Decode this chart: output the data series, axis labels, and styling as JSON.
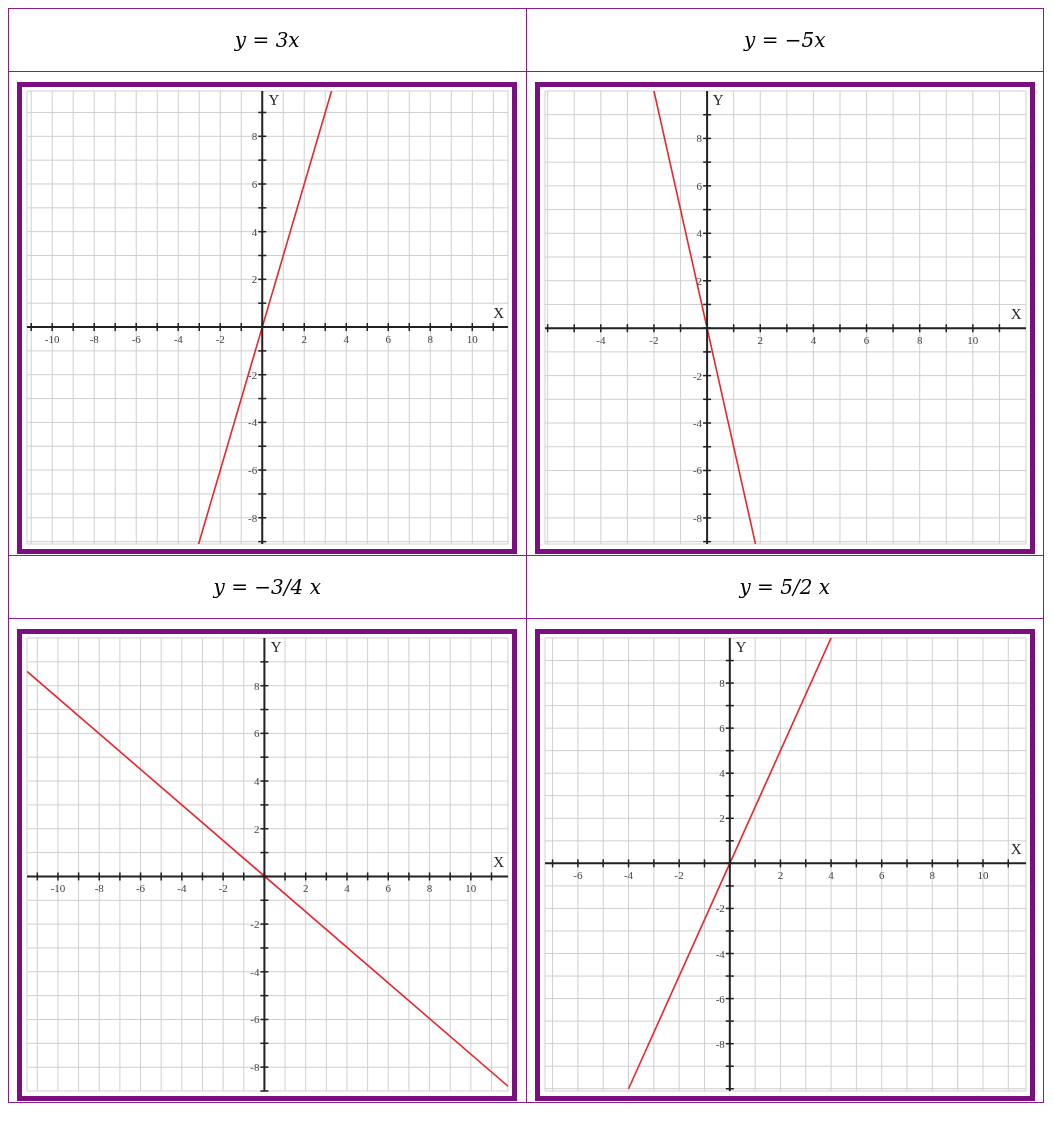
{
  "chart_data": [
    {
      "type": "line",
      "title": "y = 3x",
      "xlabel": "X",
      "ylabel": "Y",
      "xlim": [
        -11.2,
        11.7
      ],
      "ylim": [
        -9.1,
        9.9
      ],
      "xticks": [
        {
          "value": -11,
          "label": null
        },
        -10,
        {
          "value": -9,
          "label": null
        },
        -8,
        {
          "value": -7,
          "label": null
        },
        -6,
        {
          "value": -5,
          "label": null
        },
        -4,
        {
          "value": -3,
          "label": null
        },
        -2,
        {
          "value": -1,
          "label": null
        },
        {
          "value": 0,
          "label": null
        },
        {
          "value": 1,
          "label": null
        },
        2,
        {
          "value": 3,
          "label": null
        },
        4,
        {
          "value": 5,
          "label": null
        },
        6,
        {
          "value": 7,
          "label": null
        },
        8,
        {
          "value": 9,
          "label": null
        },
        10,
        {
          "value": 11,
          "label": null
        }
      ],
      "yticks": [
        {
          "value": -9,
          "label": null
        },
        -8,
        {
          "value": -7,
          "label": null
        },
        -6,
        {
          "value": -5,
          "label": null
        },
        -4,
        {
          "value": -3,
          "label": null
        },
        -2,
        {
          "value": -1,
          "label": null
        },
        {
          "value": 0,
          "label": null
        },
        {
          "value": 1,
          "label": null
        },
        2,
        {
          "value": 3,
          "label": null
        },
        4,
        {
          "value": 5,
          "label": null
        },
        6,
        {
          "value": 7,
          "label": null
        },
        8,
        {
          "value": 9,
          "label": null
        }
      ],
      "grid": true,
      "marker": "none",
      "line_style": "solid",
      "series": [
        {
          "color": "#e8262b",
          "x": [
            -3.03,
            3.3
          ],
          "values": [
            -9.1,
            9.9
          ]
        }
      ]
    },
    {
      "type": "line",
      "title": "y = −5x",
      "xlabel": "X",
      "ylabel": "Y",
      "xlim": [
        -6.1,
        12
      ],
      "ylim": [
        -9.1,
        10
      ],
      "xticks": [
        {
          "value": -6,
          "label": null
        },
        {
          "value": -5,
          "label": null
        },
        -4,
        {
          "value": -3,
          "label": null
        },
        -2,
        {
          "value": -1,
          "label": null
        },
        {
          "value": 0,
          "label": null
        },
        {
          "value": 1,
          "label": null
        },
        2,
        {
          "value": 3,
          "label": null
        },
        4,
        {
          "value": 5,
          "label": null
        },
        6,
        {
          "value": 7,
          "label": null
        },
        8,
        {
          "value": 9,
          "label": null
        },
        10,
        {
          "value": 11,
          "label": null
        }
      ],
      "yticks": [
        {
          "value": -9,
          "label": null
        },
        -8,
        {
          "value": -7,
          "label": null
        },
        -6,
        {
          "value": -5,
          "label": null
        },
        -4,
        {
          "value": -3,
          "label": null
        },
        -2,
        {
          "value": -1,
          "label": null
        },
        {
          "value": 0,
          "label": null
        },
        {
          "value": 1,
          "label": null
        },
        2,
        {
          "value": 3,
          "label": null
        },
        4,
        {
          "value": 5,
          "label": null
        },
        6,
        {
          "value": 7,
          "label": null
        },
        8,
        {
          "value": 9,
          "label": null
        }
      ],
      "grid": true,
      "marker": "none",
      "line_style": "solid",
      "series": [
        {
          "color": "#e8262b",
          "x": [
            -2,
            1.82
          ],
          "values": [
            10,
            -9.1
          ]
        }
      ]
    },
    {
      "type": "line",
      "title": "y = −3/4 x",
      "xlabel": "X",
      "ylabel": "Y",
      "xlim": [
        -11.5,
        11.8
      ],
      "ylim": [
        -9,
        10
      ],
      "xticks": [
        {
          "value": -11,
          "label": null
        },
        -10,
        {
          "value": -9,
          "label": null
        },
        -8,
        {
          "value": -7,
          "label": null
        },
        -6,
        {
          "value": -5,
          "label": null
        },
        -4,
        {
          "value": -3,
          "label": null
        },
        -2,
        {
          "value": -1,
          "label": null
        },
        {
          "value": 0,
          "label": null
        },
        {
          "value": 1,
          "label": null
        },
        2,
        {
          "value": 3,
          "label": null
        },
        4,
        {
          "value": 5,
          "label": null
        },
        6,
        {
          "value": 7,
          "label": null
        },
        8,
        {
          "value": 9,
          "label": null
        },
        10,
        {
          "value": 11,
          "label": null
        }
      ],
      "yticks": [
        {
          "value": -9,
          "label": null
        },
        -8,
        {
          "value": -7,
          "label": null
        },
        -6,
        {
          "value": -5,
          "label": null
        },
        -4,
        {
          "value": -3,
          "label": null
        },
        -2,
        {
          "value": -1,
          "label": null
        },
        {
          "value": 0,
          "label": null
        },
        {
          "value": 1,
          "label": null
        },
        2,
        {
          "value": 3,
          "label": null
        },
        4,
        {
          "value": 5,
          "label": null
        },
        6,
        {
          "value": 7,
          "label": null
        },
        8,
        {
          "value": 9,
          "label": null
        }
      ],
      "grid": true,
      "marker": "none",
      "line_style": "solid",
      "series": [
        {
          "color": "#e8262b",
          "x": [
            -11.5,
            11.8
          ],
          "values": [
            8.6,
            -8.8
          ]
        }
      ]
    },
    {
      "type": "line",
      "title": "y = 5/2 x",
      "xlabel": "X",
      "ylabel": "Y",
      "xlim": [
        -7.3,
        11.7
      ],
      "ylim": [
        -10.1,
        10
      ],
      "xticks": [
        {
          "value": -7,
          "label": null
        },
        -6,
        {
          "value": -5,
          "label": null
        },
        -4,
        {
          "value": -3,
          "label": null
        },
        -2,
        {
          "value": -1,
          "label": null
        },
        {
          "value": 0,
          "label": null
        },
        {
          "value": 1,
          "label": null
        },
        2,
        {
          "value": 3,
          "label": null
        },
        4,
        {
          "value": 5,
          "label": null
        },
        6,
        {
          "value": 7,
          "label": null
        },
        8,
        {
          "value": 9,
          "label": null
        },
        10,
        {
          "value": 11,
          "label": null
        }
      ],
      "yticks": [
        {
          "value": -10,
          "label": null
        },
        {
          "value": -9,
          "label": null
        },
        -8,
        {
          "value": -7,
          "label": null
        },
        -6,
        {
          "value": -5,
          "label": null
        },
        -4,
        {
          "value": -3,
          "label": null
        },
        -2,
        {
          "value": -1,
          "label": null
        },
        {
          "value": 0,
          "label": null
        },
        {
          "value": 1,
          "label": null
        },
        2,
        {
          "value": 3,
          "label": null
        },
        4,
        {
          "value": 5,
          "label": null
        },
        6,
        {
          "value": 7,
          "label": null
        },
        8,
        {
          "value": 9,
          "label": null
        }
      ],
      "grid": true,
      "marker": "none",
      "line_style": "solid",
      "series": [
        {
          "color": "#e8262b",
          "x": [
            -4,
            4
          ],
          "values": [
            -10,
            10
          ]
        }
      ]
    }
  ]
}
